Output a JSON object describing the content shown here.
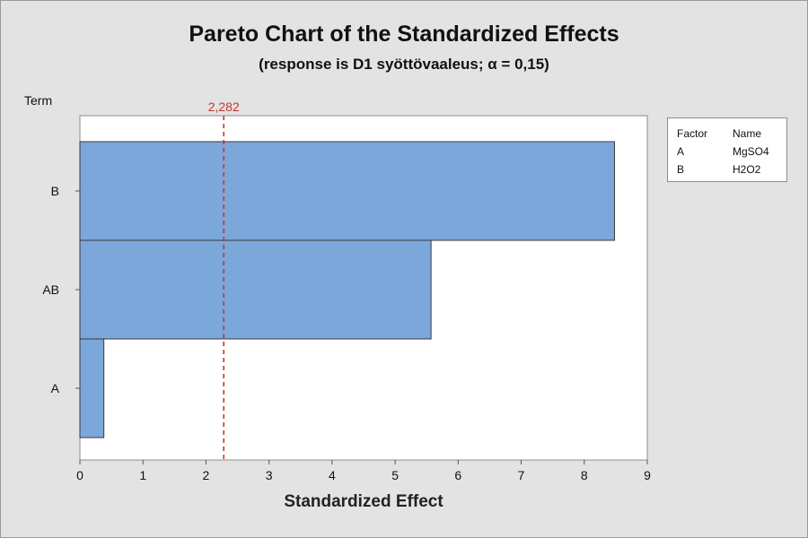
{
  "chart_data": {
    "type": "bar",
    "orientation": "horizontal",
    "title": "Pareto Chart of the Standardized Effects",
    "subtitle": "(response is D1 syöttövaaleus; α = 0,15)",
    "ylabel": "Term",
    "xlabel": "Standardized Effect",
    "categories": [
      "B",
      "AB",
      "A"
    ],
    "values": [
      8.48,
      5.57,
      0.38
    ],
    "xlim": [
      0,
      9
    ],
    "xticks": [
      0,
      1,
      2,
      3,
      4,
      5,
      6,
      7,
      8,
      9
    ],
    "reference_line": {
      "value": 2.282,
      "label": "2,282"
    },
    "legend": {
      "headers": [
        "Factor",
        "Name"
      ],
      "rows": [
        {
          "factor": "A",
          "name": "MgSO4"
        },
        {
          "factor": "B",
          "name": "H2O2"
        }
      ],
      "placement": "top-right"
    },
    "colors": {
      "bar_fill": "#7ba7db",
      "bar_stroke": "#3a3a3a",
      "reference_line": "#c0392b",
      "plot_bg": "#ffffff"
    }
  }
}
